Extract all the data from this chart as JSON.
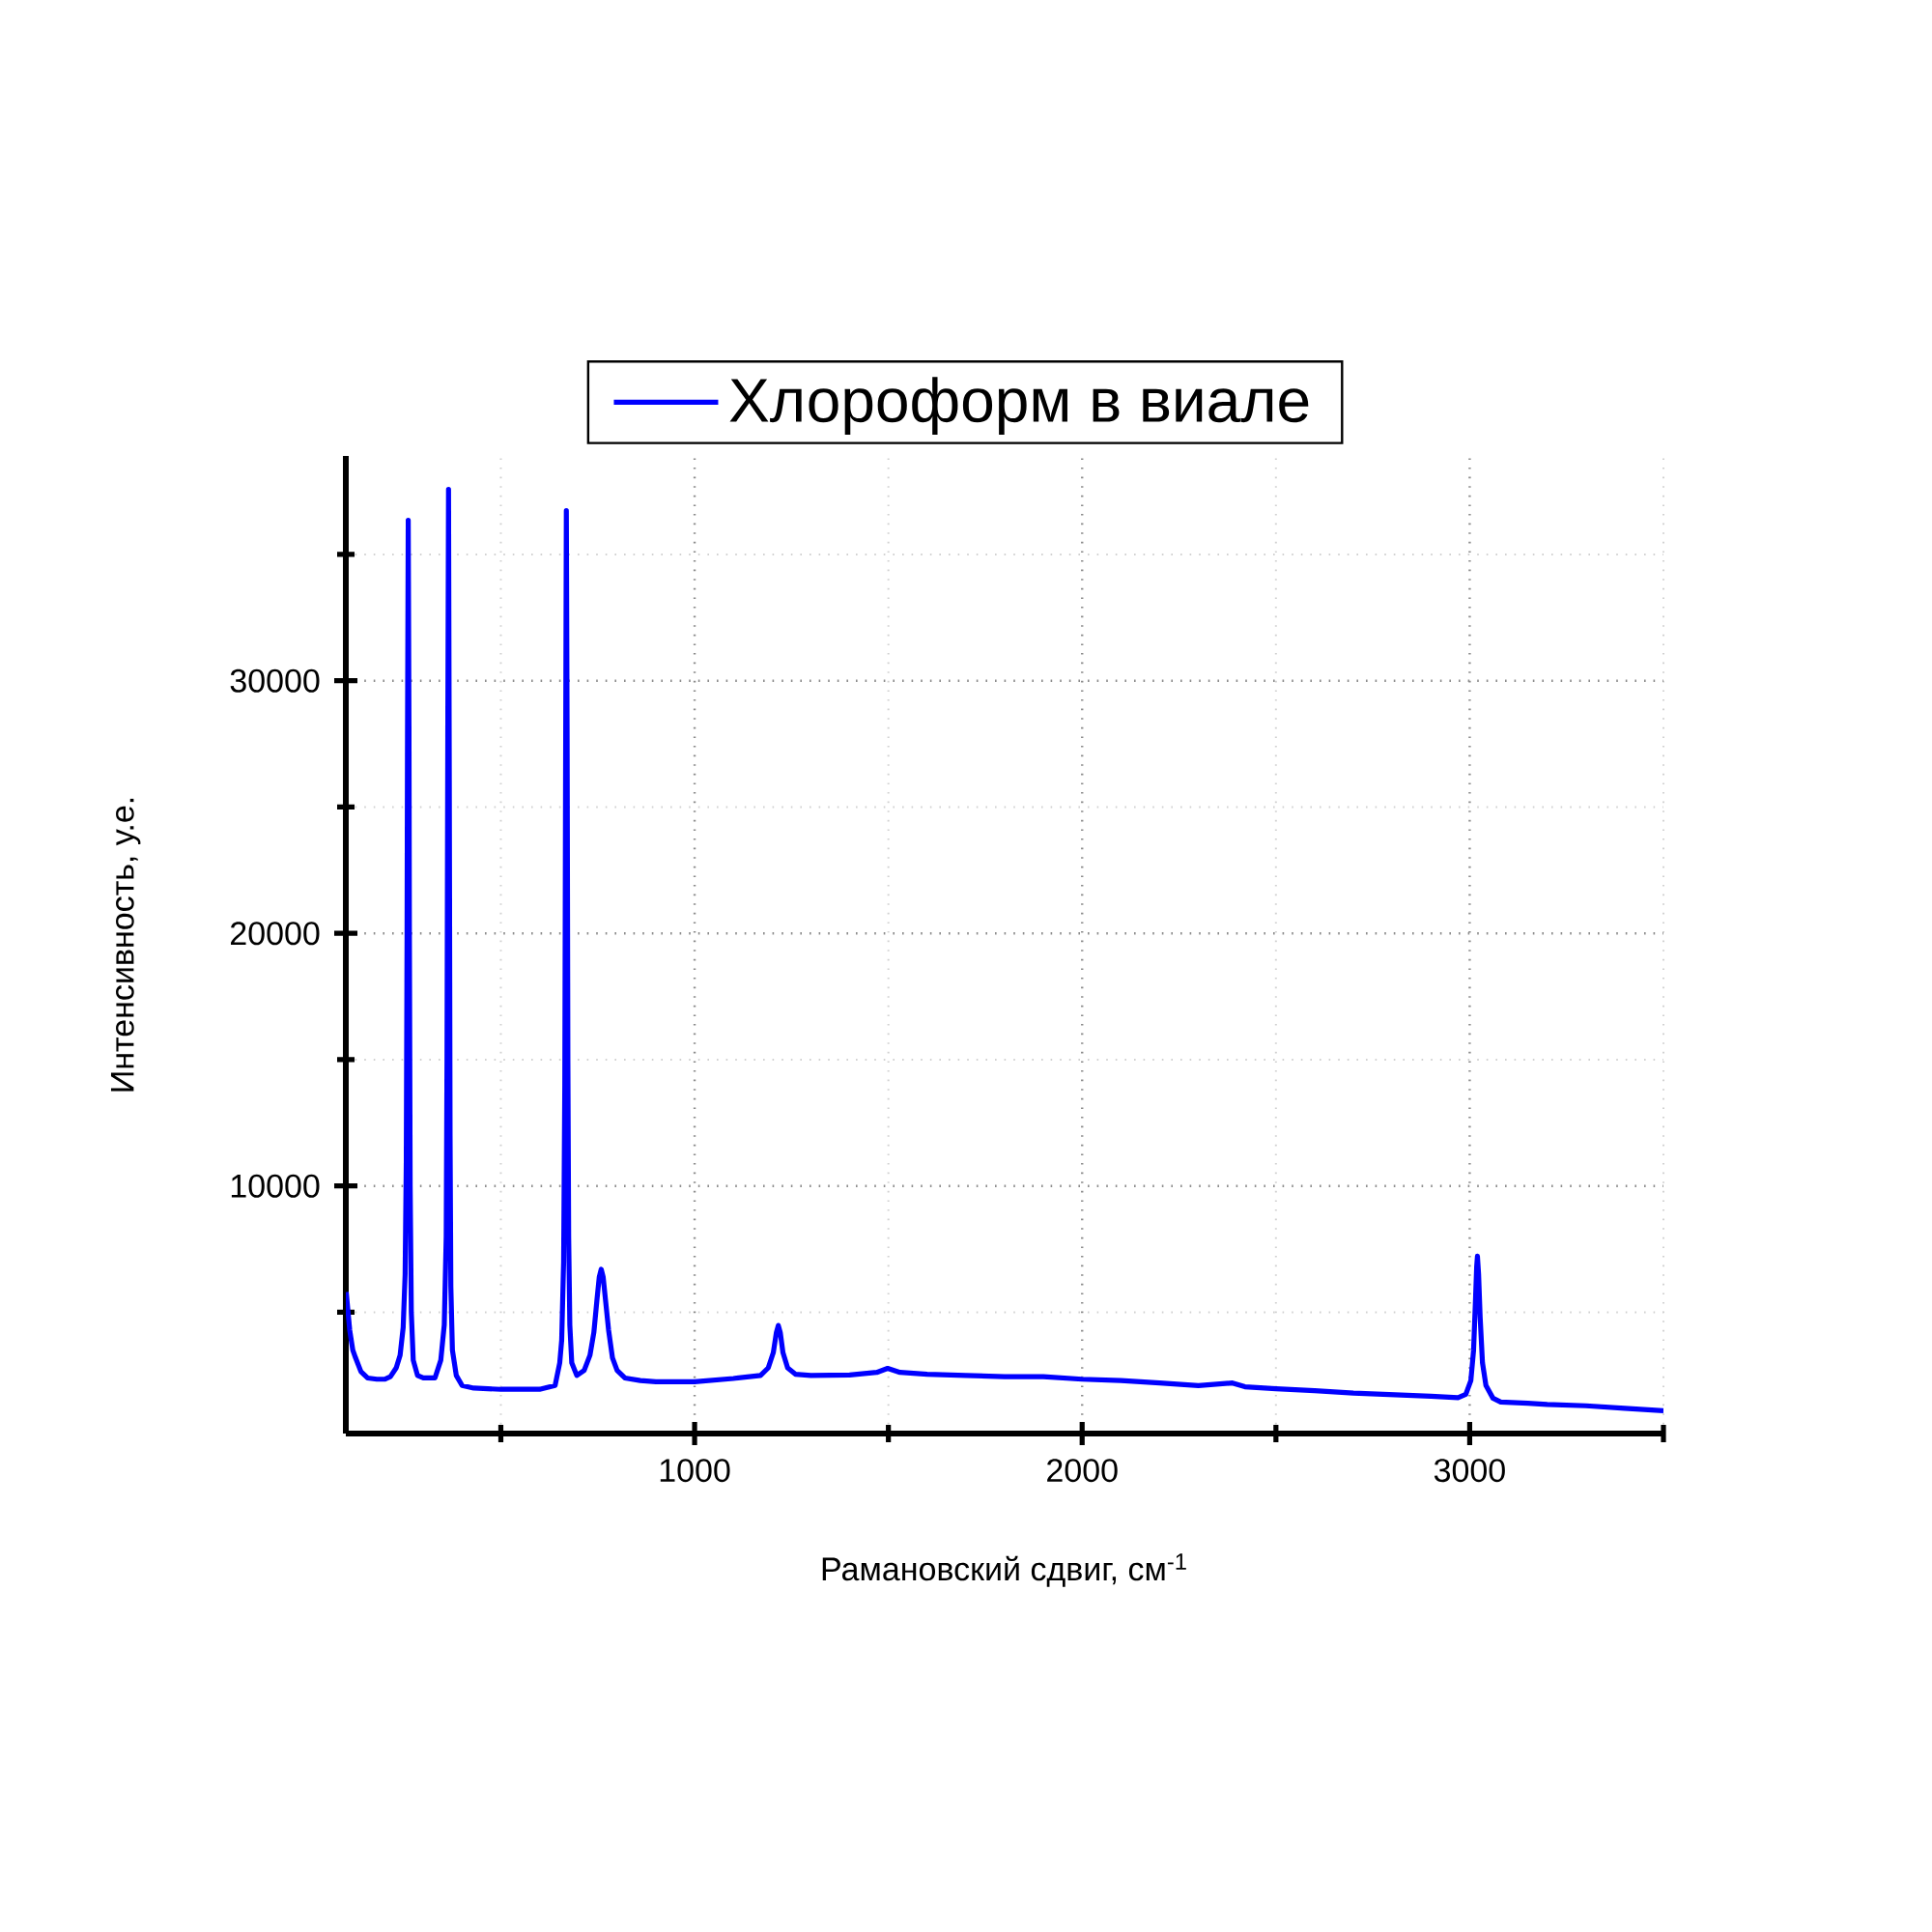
{
  "chart_data": {
    "type": "line",
    "xlabel": "Рамановский сдвиг, см$^{-1}$",
    "ylabel": "Интенсивность, у.е.",
    "x": [
      101,
      110,
      118,
      125,
      139,
      156,
      180,
      200,
      215,
      230,
      240,
      248,
      253,
      256,
      258,
      259,
      261,
      263,
      264,
      266,
      269,
      274,
      285,
      300,
      330,
      345,
      354,
      359,
      361,
      363,
      365,
      367,
      369,
      371,
      375,
      385,
      400,
      430,
      500,
      600,
      640,
      652,
      657,
      662,
      665,
      667,
      669,
      671,
      673,
      675,
      678,
      683,
      696,
      715,
      730,
      740,
      748,
      754,
      759,
      764,
      770,
      778,
      788,
      800,
      820,
      860,
      900,
      1000,
      1100,
      1170,
      1190,
      1203,
      1211,
      1216,
      1221,
      1228,
      1240,
      1260,
      1300,
      1400,
      1470,
      1498,
      1530,
      1600,
      1700,
      1800,
      1900,
      2000,
      2100,
      2200,
      2300,
      2388,
      2420,
      2500,
      2600,
      2700,
      2800,
      2900,
      2970,
      2990,
      3003,
      3010,
      3015,
      3018,
      3020,
      3023,
      3027,
      3033,
      3042,
      3060,
      3080,
      3150,
      3200,
      3300,
      3400,
      3500
    ],
    "series": [
      {
        "name": "Хлороформ в виале",
        "color": "#0000ff",
        "values": [
          5800,
          4300,
          3500,
          3200,
          2650,
          2400,
          2350,
          2350,
          2450,
          2800,
          3300,
          4400,
          6500,
          11000,
          20000,
          27000,
          36350,
          28000,
          20000,
          10000,
          5000,
          3100,
          2500,
          2400,
          2400,
          3100,
          4500,
          8000,
          15000,
          27400,
          37570,
          26000,
          12000,
          6000,
          3500,
          2500,
          2100,
          2000,
          1950,
          1950,
          2100,
          3000,
          3900,
          7000,
          14000,
          26000,
          36730,
          28000,
          15000,
          8000,
          4500,
          3000,
          2500,
          2700,
          3300,
          4200,
          5500,
          6400,
          6700,
          6400,
          5500,
          4300,
          3200,
          2700,
          2400,
          2300,
          2250,
          2250,
          2380,
          2500,
          2800,
          3400,
          4200,
          4480,
          4200,
          3400,
          2800,
          2550,
          2500,
          2520,
          2620,
          2780,
          2620,
          2550,
          2500,
          2450,
          2450,
          2350,
          2300,
          2200,
          2100,
          2200,
          2050,
          1970,
          1900,
          1800,
          1740,
          1680,
          1620,
          1750,
          2300,
          3500,
          5500,
          6800,
          7220,
          6500,
          4800,
          3000,
          2100,
          1600,
          1450,
          1400,
          1350,
          1300,
          1200,
          1100
        ]
      }
    ],
    "xlim": [
      100,
      3500
    ],
    "ylim": [
      200,
      38900
    ],
    "xticks": [
      {
        "value": 500,
        "label": null
      },
      1000,
      {
        "value": 1500,
        "label": null
      },
      2000,
      {
        "value": 2500,
        "label": null
      },
      3000,
      {
        "value": 3500,
        "label": null
      }
    ],
    "yticks": [
      {
        "value": 5000,
        "label": null
      },
      10000,
      {
        "value": 15000,
        "label": null
      },
      20000,
      {
        "value": 25000,
        "label": null
      },
      30000,
      {
        "value": 35000,
        "label": null
      }
    ],
    "grid": true,
    "legend": "top"
  }
}
